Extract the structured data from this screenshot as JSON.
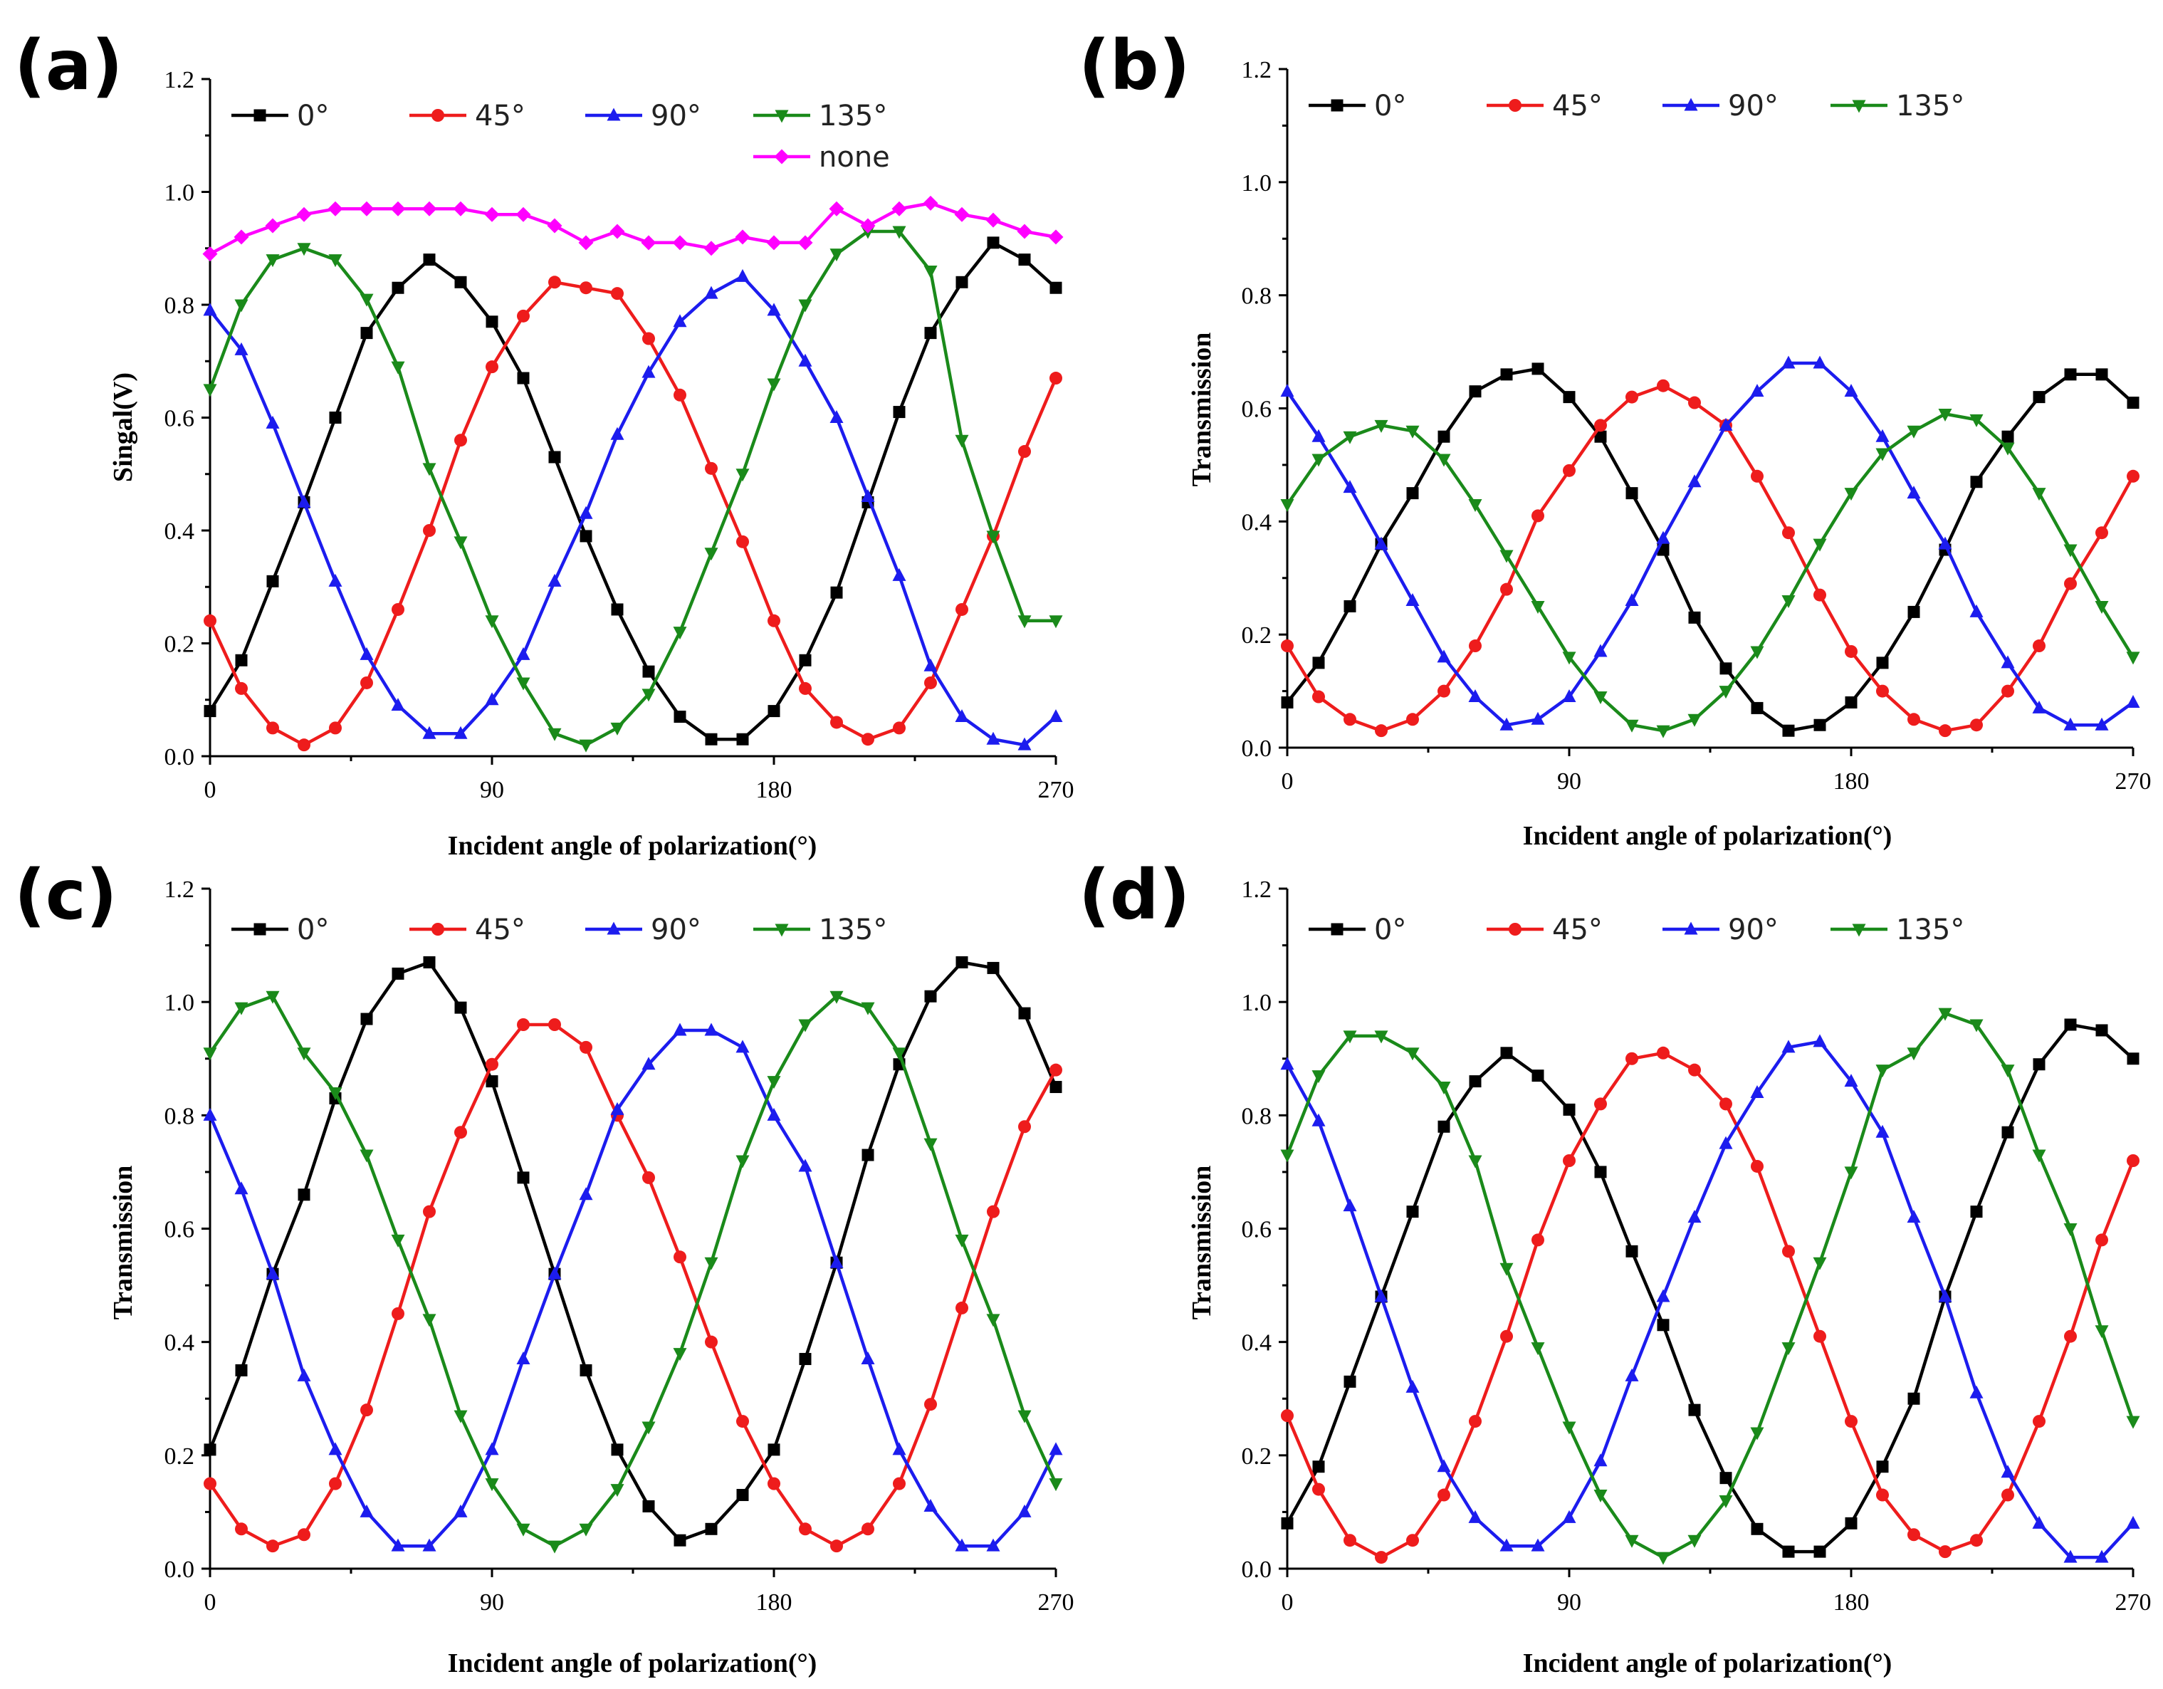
{
  "chart_data": [
    {
      "panel": "(a)",
      "type": "line",
      "xlabel": "Incident angle of polarization(°)",
      "ylabel": "Singal(V)",
      "xlim": [
        0,
        270
      ],
      "ylim": [
        0,
        1.2
      ],
      "xticks": [
        "0",
        "90",
        "180",
        "270"
      ],
      "yticks": [
        "0.0",
        "0.2",
        "0.4",
        "0.6",
        "0.8",
        "1.0",
        "1.2"
      ],
      "legend_position": "top",
      "x": [
        0,
        10,
        20,
        30,
        40,
        50,
        60,
        70,
        80,
        90,
        100,
        110,
        120,
        130,
        140,
        150,
        160,
        170,
        180,
        190,
        200,
        210,
        220,
        230,
        240,
        250,
        260,
        270
      ],
      "series": [
        {
          "name": "0°",
          "color": "#000000",
          "marker": "square",
          "values": [
            0.08,
            0.17,
            0.31,
            0.45,
            0.6,
            0.75,
            0.83,
            0.88,
            0.84,
            0.77,
            0.67,
            0.53,
            0.39,
            0.26,
            0.15,
            0.07,
            0.03,
            0.03,
            0.08,
            0.17,
            0.29,
            0.45,
            0.61,
            0.75,
            0.84,
            0.91,
            0.88,
            0.83
          ]
        },
        {
          "name": "45°",
          "color": "#ee1c1c",
          "marker": "circle",
          "values": [
            0.24,
            0.12,
            0.05,
            0.02,
            0.05,
            0.13,
            0.26,
            0.4,
            0.56,
            0.69,
            0.78,
            0.84,
            0.83,
            0.82,
            0.74,
            0.64,
            0.51,
            0.38,
            0.24,
            0.12,
            0.06,
            0.03,
            0.05,
            0.13,
            0.26,
            0.39,
            0.54,
            0.67
          ]
        },
        {
          "name": "90°",
          "color": "#1c1cee",
          "marker": "triangle-up",
          "values": [
            0.79,
            0.72,
            0.59,
            0.45,
            0.31,
            0.18,
            0.09,
            0.04,
            0.04,
            0.1,
            0.18,
            0.31,
            0.43,
            0.57,
            0.68,
            0.77,
            0.82,
            0.85,
            0.79,
            0.7,
            0.6,
            0.46,
            0.32,
            0.16,
            0.07,
            0.03,
            0.02,
            0.07
          ]
        },
        {
          "name": "135°",
          "color": "#1a8a1a",
          "marker": "triangle-down",
          "values": [
            0.65,
            0.8,
            0.88,
            0.9,
            0.88,
            0.81,
            0.69,
            0.51,
            0.38,
            0.24,
            0.13,
            0.04,
            0.02,
            0.05,
            0.11,
            0.22,
            0.36,
            0.5,
            0.66,
            0.8,
            0.89,
            0.93,
            0.93,
            0.86,
            0.56,
            0.39,
            0.24,
            0.24
          ]
        },
        {
          "name": "none",
          "color": "#ff00ff",
          "marker": "diamond",
          "values": [
            0.89,
            0.92,
            0.94,
            0.96,
            0.97,
            0.97,
            0.97,
            0.97,
            0.97,
            0.96,
            0.96,
            0.94,
            0.91,
            0.93,
            0.91,
            0.91,
            0.9,
            0.92,
            0.91,
            0.91,
            0.97,
            0.94,
            0.97,
            0.98,
            0.96,
            0.95,
            0.93,
            0.92
          ]
        }
      ]
    },
    {
      "panel": "(b)",
      "type": "line",
      "xlabel": "Incident angle of polarization(°)",
      "ylabel": "Transmission",
      "xlim": [
        0,
        270
      ],
      "ylim": [
        0,
        1.2
      ],
      "xticks": [
        "0",
        "90",
        "180",
        "270"
      ],
      "yticks": [
        "0.0",
        "0.2",
        "0.4",
        "0.6",
        "0.8",
        "1.0",
        "1.2"
      ],
      "legend_position": "top",
      "x": [
        0,
        10,
        20,
        30,
        40,
        50,
        60,
        70,
        80,
        90,
        100,
        110,
        120,
        130,
        140,
        150,
        160,
        170,
        180,
        190,
        200,
        210,
        220,
        230,
        240,
        250,
        260,
        270
      ],
      "series": [
        {
          "name": "0°",
          "color": "#000000",
          "marker": "square",
          "values": [
            0.08,
            0.15,
            0.25,
            0.36,
            0.45,
            0.55,
            0.63,
            0.66,
            0.67,
            0.62,
            0.55,
            0.45,
            0.35,
            0.23,
            0.14,
            0.07,
            0.03,
            0.04,
            0.08,
            0.15,
            0.24,
            0.35,
            0.47,
            0.55,
            0.62,
            0.66,
            0.66,
            0.61
          ]
        },
        {
          "name": "45°",
          "color": "#ee1c1c",
          "marker": "circle",
          "values": [
            0.18,
            0.09,
            0.05,
            0.03,
            0.05,
            0.1,
            0.18,
            0.28,
            0.41,
            0.49,
            0.57,
            0.62,
            0.64,
            0.61,
            0.57,
            0.48,
            0.38,
            0.27,
            0.17,
            0.1,
            0.05,
            0.03,
            0.04,
            0.1,
            0.18,
            0.29,
            0.38,
            0.48
          ]
        },
        {
          "name": "90°",
          "color": "#1c1cee",
          "marker": "triangle-up",
          "values": [
            0.63,
            0.55,
            0.46,
            0.36,
            0.26,
            0.16,
            0.09,
            0.04,
            0.05,
            0.09,
            0.17,
            0.26,
            0.37,
            0.47,
            0.57,
            0.63,
            0.68,
            0.68,
            0.63,
            0.55,
            0.45,
            0.36,
            0.24,
            0.15,
            0.07,
            0.04,
            0.04,
            0.08
          ]
        },
        {
          "name": "135°",
          "color": "#1a8a1a",
          "marker": "triangle-down",
          "values": [
            0.43,
            0.51,
            0.55,
            0.57,
            0.56,
            0.51,
            0.43,
            0.34,
            0.25,
            0.16,
            0.09,
            0.04,
            0.03,
            0.05,
            0.1,
            0.17,
            0.26,
            0.36,
            0.45,
            0.52,
            0.56,
            0.59,
            0.58,
            0.53,
            0.45,
            0.35,
            0.25,
            0.16
          ]
        }
      ]
    },
    {
      "panel": "(c)",
      "type": "line",
      "xlabel": "Incident angle of polarization(°)",
      "ylabel": "Transmission",
      "xlim": [
        0,
        270
      ],
      "ylim": [
        0,
        1.2
      ],
      "xticks": [
        "0",
        "90",
        "180",
        "270"
      ],
      "yticks": [
        "0.0",
        "0.2",
        "0.4",
        "0.6",
        "0.8",
        "1.0",
        "1.2"
      ],
      "legend_position": "top",
      "x": [
        0,
        10,
        20,
        30,
        40,
        50,
        60,
        70,
        80,
        90,
        100,
        110,
        120,
        130,
        140,
        150,
        160,
        170,
        180,
        190,
        200,
        210,
        220,
        230,
        240,
        250,
        260,
        270
      ],
      "series": [
        {
          "name": "0°",
          "color": "#000000",
          "marker": "square",
          "values": [
            0.21,
            0.35,
            0.52,
            0.66,
            0.83,
            0.97,
            1.05,
            1.07,
            0.99,
            0.86,
            0.69,
            0.52,
            0.35,
            0.21,
            0.11,
            0.05,
            0.07,
            0.13,
            0.21,
            0.37,
            0.54,
            0.73,
            0.89,
            1.01,
            1.07,
            1.06,
            0.98,
            0.85
          ]
        },
        {
          "name": "45°",
          "color": "#ee1c1c",
          "marker": "circle",
          "values": [
            0.15,
            0.07,
            0.04,
            0.06,
            0.15,
            0.28,
            0.45,
            0.63,
            0.77,
            0.89,
            0.96,
            0.96,
            0.92,
            0.8,
            0.69,
            0.55,
            0.4,
            0.26,
            0.15,
            0.07,
            0.04,
            0.07,
            0.15,
            0.29,
            0.46,
            0.63,
            0.78,
            0.88
          ]
        },
        {
          "name": "90°",
          "color": "#1c1cee",
          "marker": "triangle-up",
          "values": [
            0.8,
            0.67,
            0.52,
            0.34,
            0.21,
            0.1,
            0.04,
            0.04,
            0.1,
            0.21,
            0.37,
            0.52,
            0.66,
            0.81,
            0.89,
            0.95,
            0.95,
            0.92,
            0.8,
            0.71,
            0.54,
            0.37,
            0.21,
            0.11,
            0.04,
            0.04,
            0.1,
            0.21
          ]
        },
        {
          "name": "135°",
          "color": "#1a8a1a",
          "marker": "triangle-down",
          "values": [
            0.91,
            0.99,
            1.01,
            0.91,
            0.84,
            0.73,
            0.58,
            0.44,
            0.27,
            0.15,
            0.07,
            0.04,
            0.07,
            0.14,
            0.25,
            0.38,
            0.54,
            0.72,
            0.86,
            0.96,
            1.01,
            0.99,
            0.91,
            0.75,
            0.58,
            0.44,
            0.27,
            0.15
          ]
        }
      ]
    },
    {
      "panel": "(d)",
      "type": "line",
      "xlabel": "Incident angle of polarization(°)",
      "ylabel": "Transmission",
      "xlim": [
        0,
        270
      ],
      "ylim": [
        0,
        1.2
      ],
      "xticks": [
        "0",
        "90",
        "180",
        "270"
      ],
      "yticks": [
        "0.0",
        "0.2",
        "0.4",
        "0.6",
        "0.8",
        "1.0",
        "1.2"
      ],
      "legend_position": "top",
      "x": [
        0,
        10,
        20,
        30,
        40,
        50,
        60,
        70,
        80,
        90,
        100,
        110,
        120,
        130,
        140,
        150,
        160,
        170,
        180,
        190,
        200,
        210,
        220,
        230,
        240,
        250,
        260,
        270
      ],
      "series": [
        {
          "name": "0°",
          "color": "#000000",
          "marker": "square",
          "values": [
            0.08,
            0.18,
            0.33,
            0.48,
            0.63,
            0.78,
            0.86,
            0.91,
            0.87,
            0.81,
            0.7,
            0.56,
            0.43,
            0.28,
            0.16,
            0.07,
            0.03,
            0.03,
            0.08,
            0.18,
            0.3,
            0.48,
            0.63,
            0.77,
            0.89,
            0.96,
            0.95,
            0.9
          ]
        },
        {
          "name": "45°",
          "color": "#ee1c1c",
          "marker": "circle",
          "values": [
            0.27,
            0.14,
            0.05,
            0.02,
            0.05,
            0.13,
            0.26,
            0.41,
            0.58,
            0.72,
            0.82,
            0.9,
            0.91,
            0.88,
            0.82,
            0.71,
            0.56,
            0.41,
            0.26,
            0.13,
            0.06,
            0.03,
            0.05,
            0.13,
            0.26,
            0.41,
            0.58,
            0.72
          ]
        },
        {
          "name": "90°",
          "color": "#1c1cee",
          "marker": "triangle-up",
          "values": [
            0.89,
            0.79,
            0.64,
            0.48,
            0.32,
            0.18,
            0.09,
            0.04,
            0.04,
            0.09,
            0.19,
            0.34,
            0.48,
            0.62,
            0.75,
            0.84,
            0.92,
            0.93,
            0.86,
            0.77,
            0.62,
            0.48,
            0.31,
            0.17,
            0.08,
            0.02,
            0.02,
            0.08
          ]
        },
        {
          "name": "135°",
          "color": "#1a8a1a",
          "marker": "triangle-down",
          "values": [
            0.73,
            0.87,
            0.94,
            0.94,
            0.91,
            0.85,
            0.72,
            0.53,
            0.39,
            0.25,
            0.13,
            0.05,
            0.02,
            0.05,
            0.12,
            0.24,
            0.39,
            0.54,
            0.7,
            0.88,
            0.91,
            0.98,
            0.96,
            0.88,
            0.73,
            0.6,
            0.42,
            0.26
          ]
        }
      ]
    }
  ]
}
